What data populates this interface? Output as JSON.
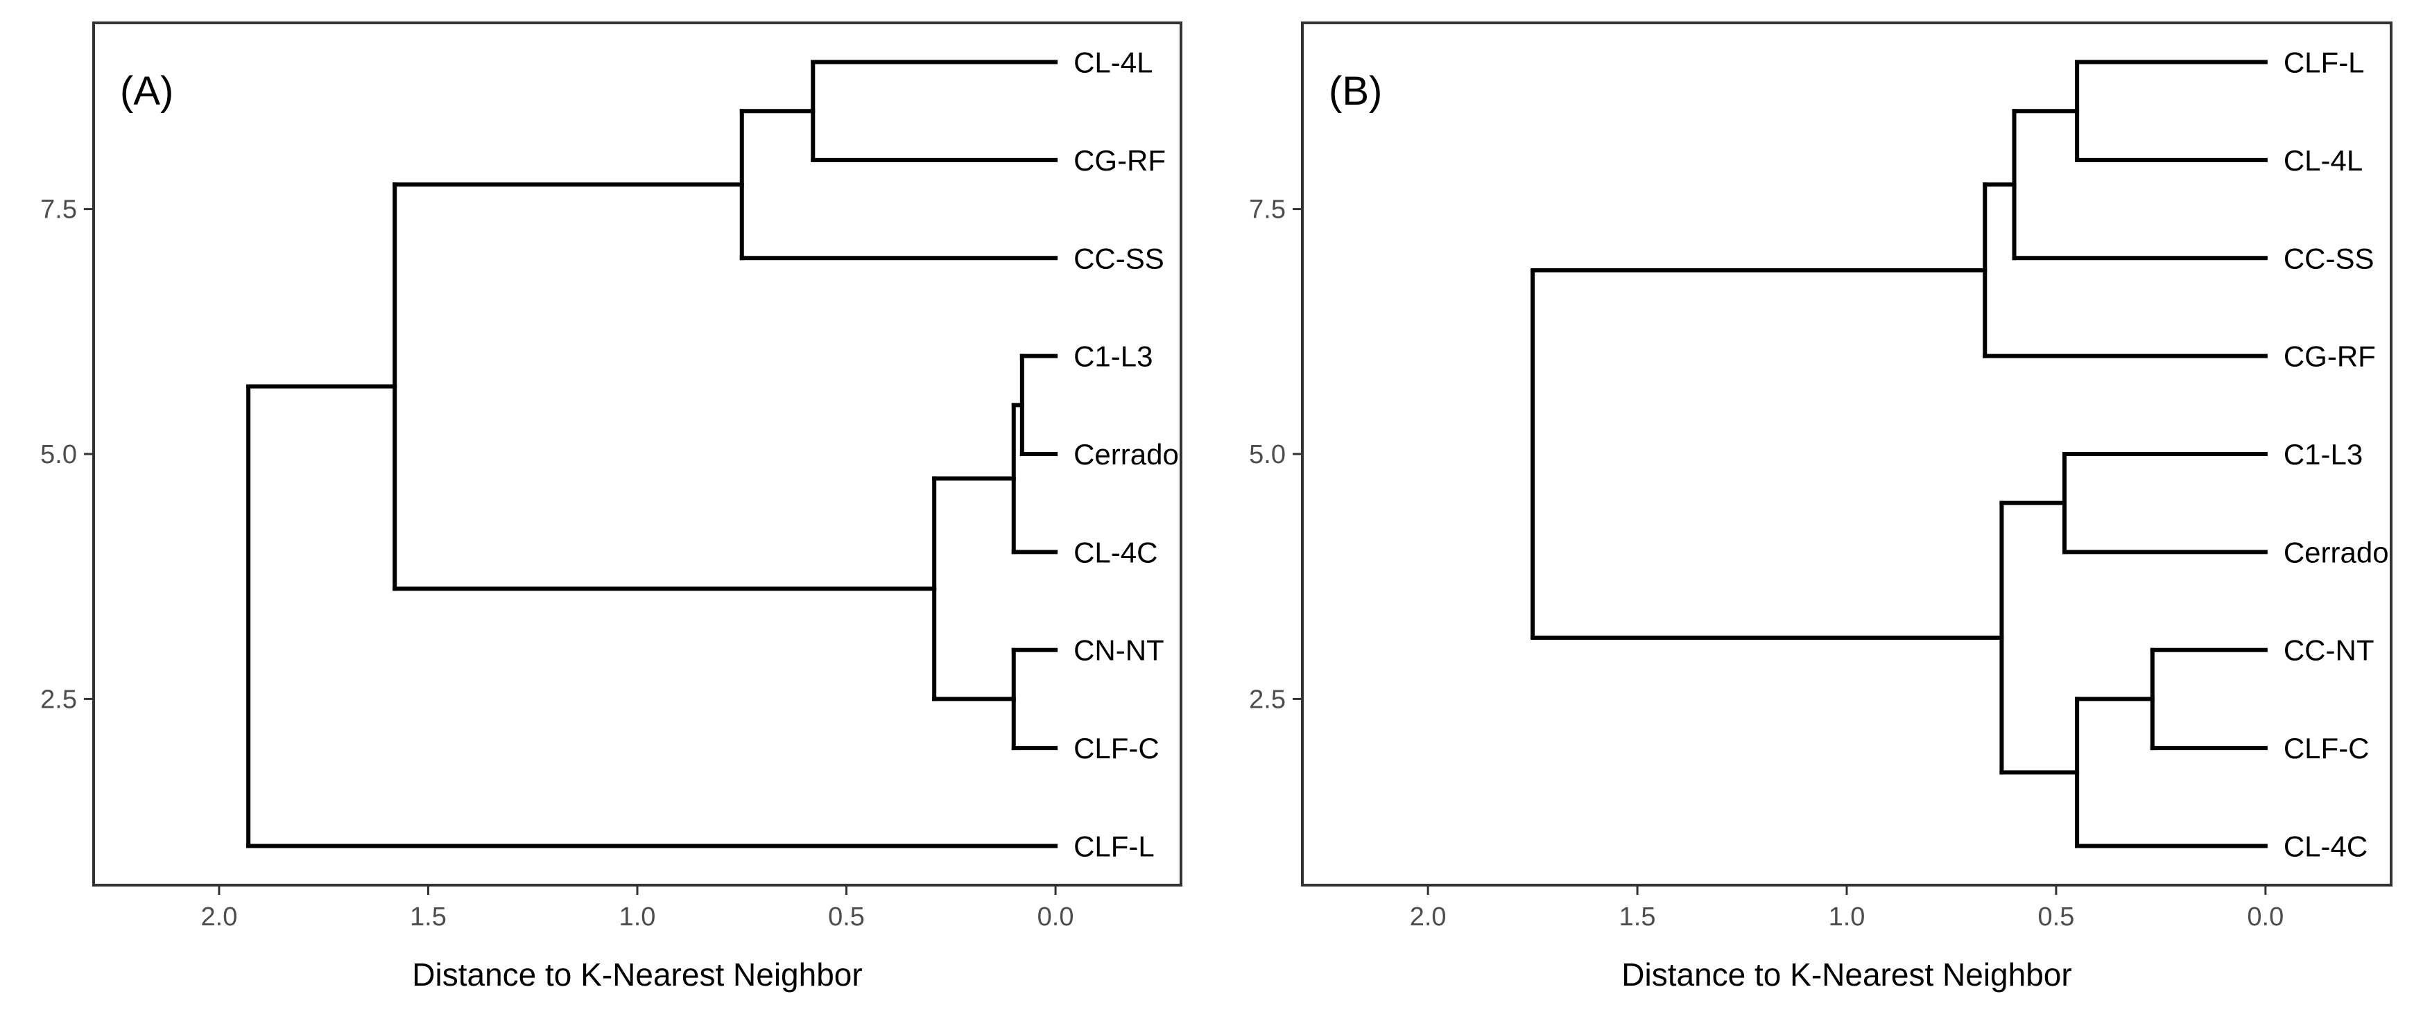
{
  "chart_data": [
    {
      "type": "dendrogram",
      "panel_label": "(A)",
      "xlabel": "Distance to K-Nearest Neighbor",
      "ylabel": "",
      "xlim": [
        2.3,
        -0.3
      ],
      "ylim": [
        0.6,
        9.4
      ],
      "x_ticks": [
        2.0,
        1.5,
        1.0,
        0.5,
        0.0
      ],
      "x_tick_labels": [
        "2.0",
        "1.5",
        "1.0",
        "0.5",
        "0.0"
      ],
      "y_ticks": [
        2.5,
        5.0,
        7.5
      ],
      "y_tick_labels": [
        "2.5",
        "5.0",
        "7.5"
      ],
      "leaves": [
        {
          "label": "CL-4L",
          "y": 9
        },
        {
          "label": "CG-RF",
          "y": 8
        },
        {
          "label": "CC-SS",
          "y": 7
        },
        {
          "label": "C1-L3",
          "y": 6
        },
        {
          "label": "Cerrado",
          "y": 5
        },
        {
          "label": "CL-4C",
          "y": 4
        },
        {
          "label": "CN-NT",
          "y": 3
        },
        {
          "label": "CLF-C",
          "y": 2
        },
        {
          "label": "CLF-L",
          "y": 1
        }
      ],
      "segments": [
        [
          0.0,
          9,
          0.58,
          9
        ],
        [
          0.0,
          8,
          0.58,
          8
        ],
        [
          0.58,
          8,
          0.58,
          9
        ],
        [
          0.58,
          8.5,
          0.75,
          8.5
        ],
        [
          0.0,
          7,
          0.75,
          7
        ],
        [
          0.75,
          7,
          0.75,
          8.5
        ],
        [
          0.75,
          7.75,
          1.58,
          7.75
        ],
        [
          0.0,
          6,
          0.08,
          6
        ],
        [
          0.0,
          5,
          0.08,
          5
        ],
        [
          0.08,
          5,
          0.08,
          6
        ],
        [
          0.08,
          5.5,
          0.1,
          5.5
        ],
        [
          0.0,
          4,
          0.1,
          4
        ],
        [
          0.1,
          4,
          0.1,
          5.5
        ],
        [
          0.1,
          4.75,
          0.29,
          4.75
        ],
        [
          0.0,
          3,
          0.1,
          3
        ],
        [
          0.0,
          2,
          0.1,
          2
        ],
        [
          0.1,
          2,
          0.1,
          3
        ],
        [
          0.1,
          2.5,
          0.29,
          2.5
        ],
        [
          0.29,
          2.5,
          0.29,
          4.75
        ],
        [
          0.29,
          3.625,
          1.58,
          3.625
        ],
        [
          1.58,
          3.625,
          1.58,
          7.75
        ],
        [
          1.58,
          5.69,
          1.93,
          5.69
        ],
        [
          0.0,
          1,
          1.93,
          1
        ],
        [
          1.93,
          1,
          1.93,
          5.69
        ]
      ]
    },
    {
      "type": "dendrogram",
      "panel_label": "(B)",
      "xlabel": "Distance to K-Nearest Neighbor",
      "ylabel": "",
      "xlim": [
        2.3,
        -0.3
      ],
      "ylim": [
        0.6,
        9.4
      ],
      "x_ticks": [
        2.0,
        1.5,
        1.0,
        0.5,
        0.0
      ],
      "x_tick_labels": [
        "2.0",
        "1.5",
        "1.0",
        "0.5",
        "0.0"
      ],
      "y_ticks": [
        2.5,
        5.0,
        7.5
      ],
      "y_tick_labels": [
        "2.5",
        "5.0",
        "7.5"
      ],
      "leaves": [
        {
          "label": "CLF-L",
          "y": 9
        },
        {
          "label": "CL-4L",
          "y": 8
        },
        {
          "label": "CC-SS",
          "y": 7
        },
        {
          "label": "CG-RF",
          "y": 6
        },
        {
          "label": "C1-L3",
          "y": 5
        },
        {
          "label": "Cerrado",
          "y": 4
        },
        {
          "label": "CC-NT",
          "y": 3
        },
        {
          "label": "CLF-C",
          "y": 2
        },
        {
          "label": "CL-4C",
          "y": 1
        }
      ],
      "segments": [
        [
          0.0,
          9,
          0.45,
          9
        ],
        [
          0.0,
          8,
          0.45,
          8
        ],
        [
          0.45,
          8,
          0.45,
          9
        ],
        [
          0.45,
          8.5,
          0.6,
          8.5
        ],
        [
          0.0,
          7,
          0.6,
          7
        ],
        [
          0.6,
          7,
          0.6,
          8.5
        ],
        [
          0.6,
          7.75,
          0.67,
          7.75
        ],
        [
          0.0,
          6,
          0.67,
          6
        ],
        [
          0.67,
          6,
          0.67,
          7.75
        ],
        [
          0.67,
          6.875,
          1.75,
          6.875
        ],
        [
          0.0,
          5,
          0.48,
          5
        ],
        [
          0.0,
          4,
          0.48,
          4
        ],
        [
          0.48,
          4,
          0.48,
          5
        ],
        [
          0.48,
          4.5,
          0.63,
          4.5
        ],
        [
          0.0,
          3,
          0.27,
          3
        ],
        [
          0.0,
          2,
          0.27,
          2
        ],
        [
          0.27,
          2,
          0.27,
          3
        ],
        [
          0.27,
          2.5,
          0.45,
          2.5
        ],
        [
          0.0,
          1,
          0.45,
          1
        ],
        [
          0.45,
          1,
          0.45,
          2.5
        ],
        [
          0.45,
          1.75,
          0.63,
          1.75
        ],
        [
          0.63,
          1.75,
          0.63,
          4.5
        ],
        [
          0.63,
          3.125,
          1.75,
          3.125
        ],
        [
          1.75,
          3.125,
          1.75,
          6.875
        ]
      ]
    }
  ]
}
